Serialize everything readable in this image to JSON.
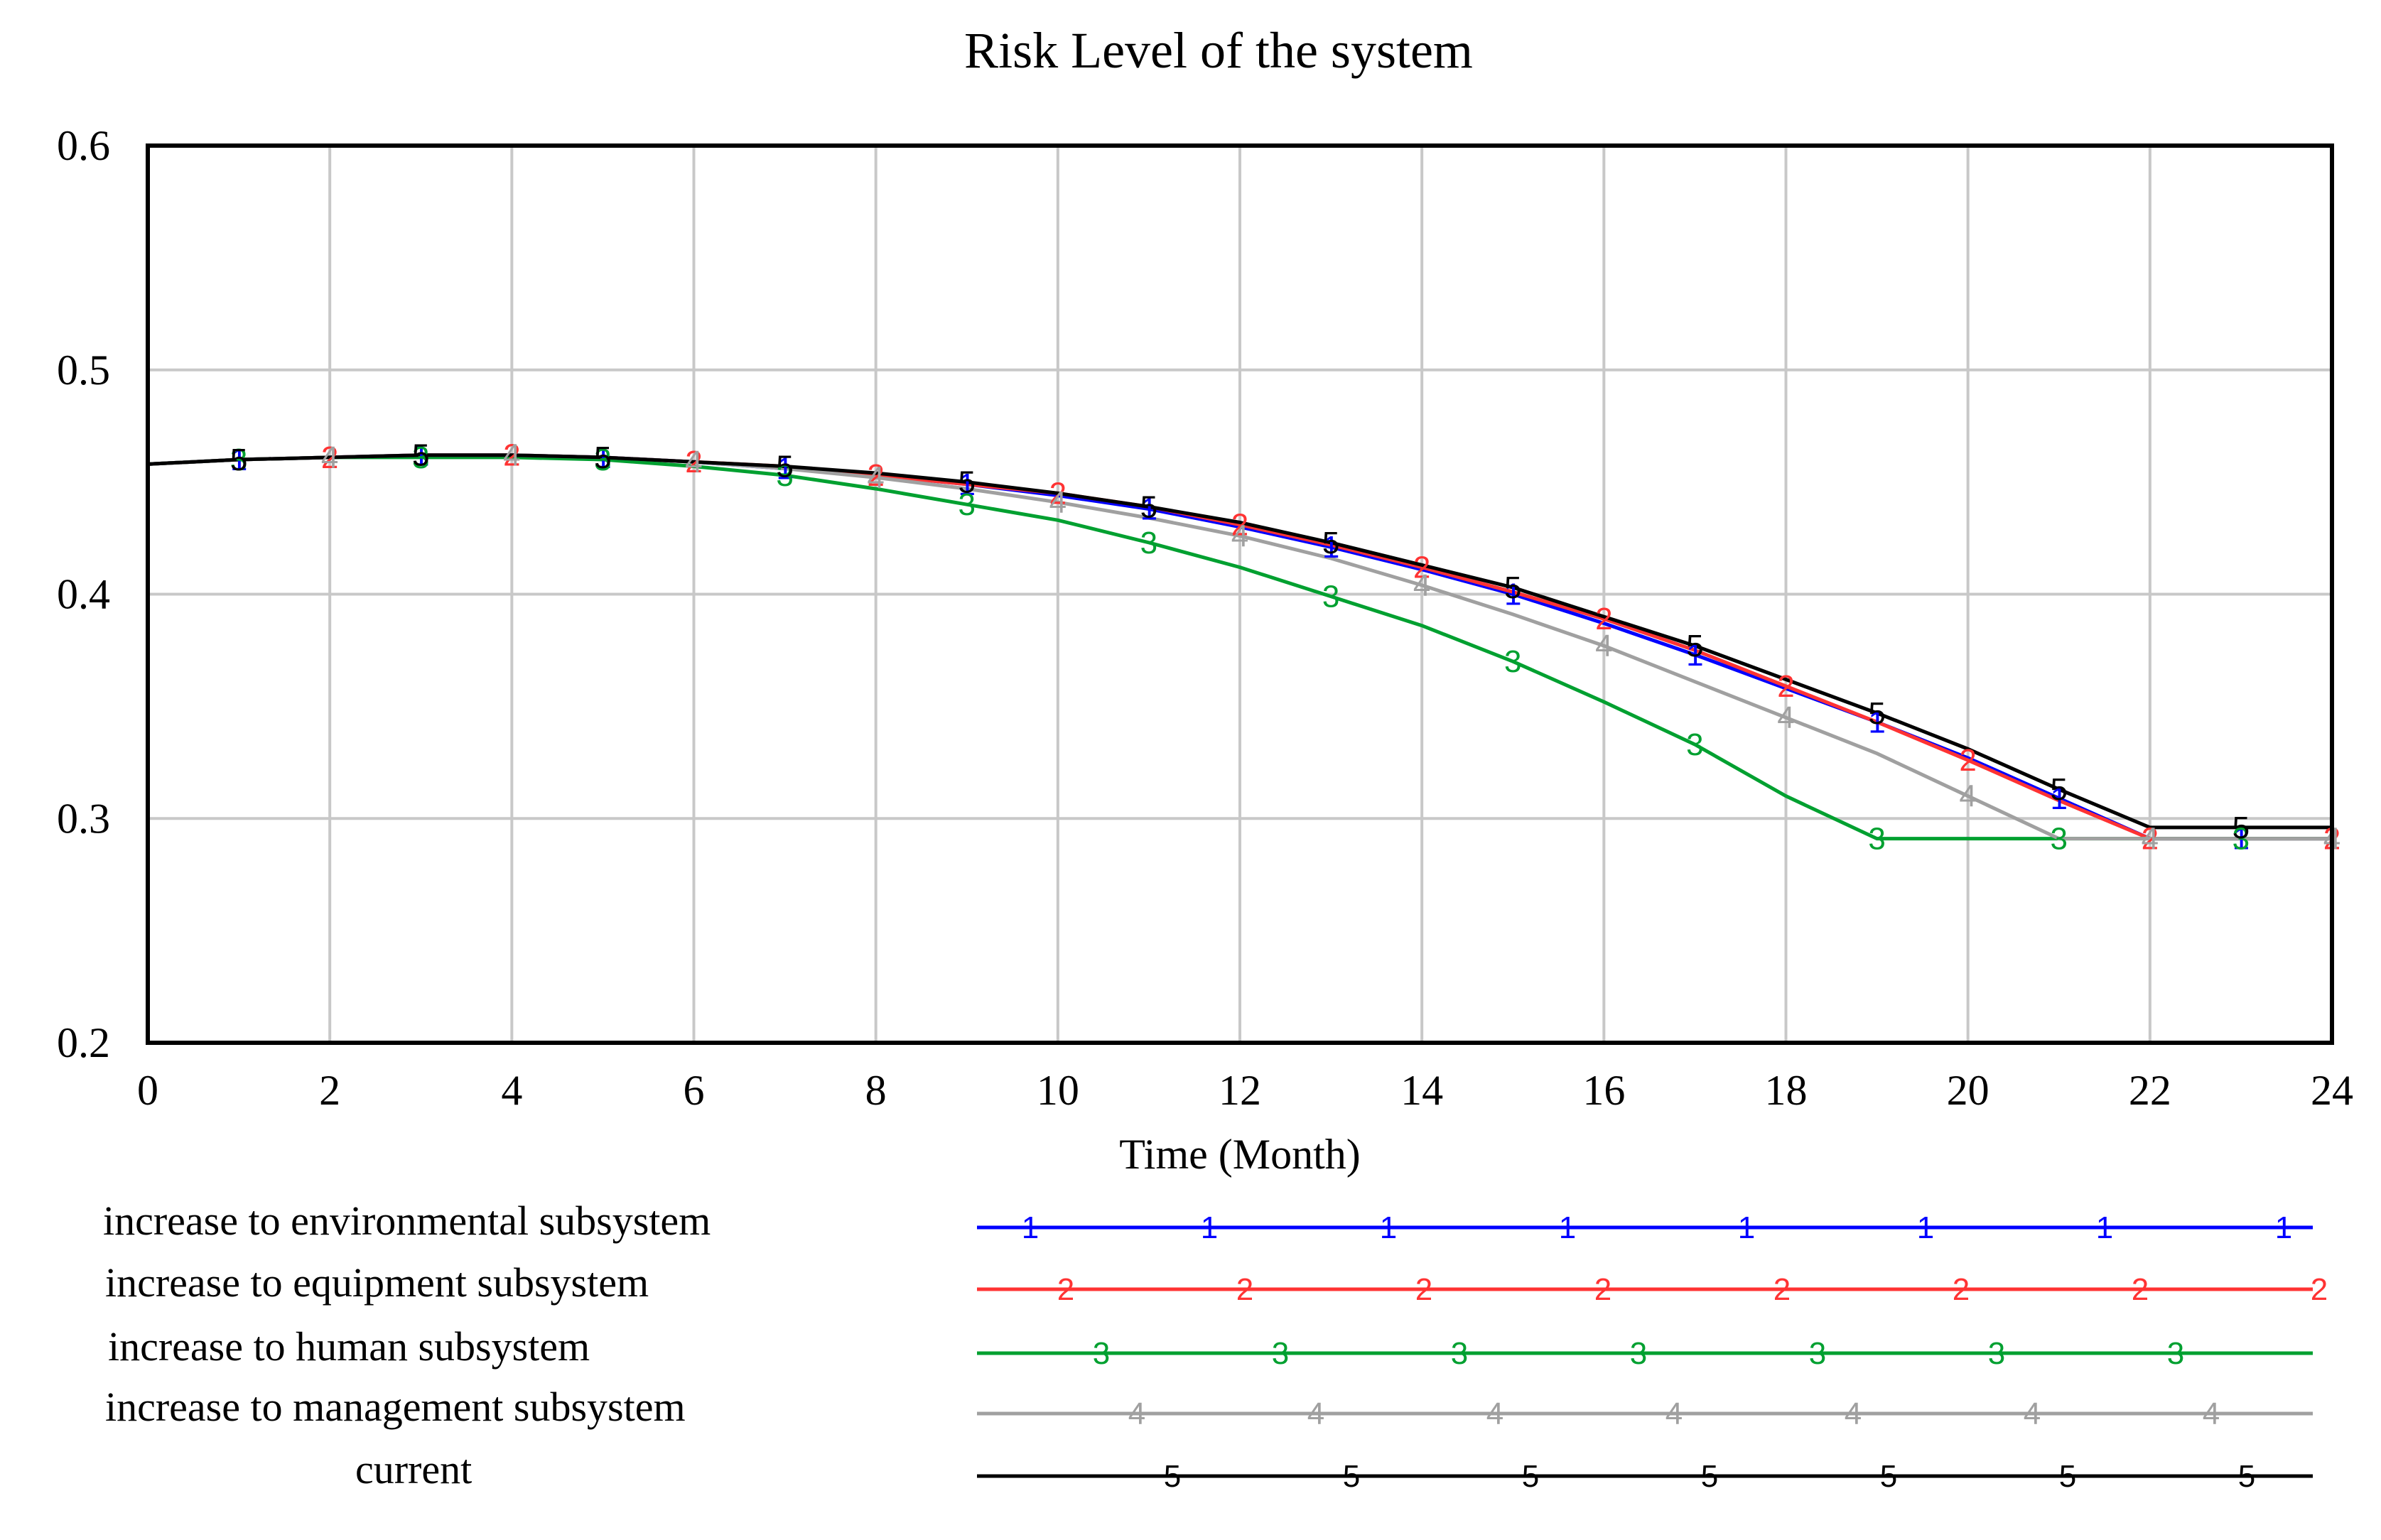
{
  "chart_data": {
    "type": "line",
    "title": "Risk Level of the system",
    "xlabel": "Time (Month)",
    "ylabel": "",
    "xlim": [
      0,
      24
    ],
    "ylim": [
      0.2,
      0.6
    ],
    "xticks": [
      "0",
      "2",
      "4",
      "6",
      "8",
      "10",
      "12",
      "14",
      "16",
      "18",
      "20",
      "22",
      "24"
    ],
    "yticks": [
      "0.2",
      "0.3",
      "0.4",
      "0.5",
      "0.6"
    ],
    "grid": true,
    "legend_position": "bottom",
    "x": [
      0,
      1,
      2,
      3,
      4,
      5,
      6,
      7,
      8,
      9,
      10,
      11,
      12,
      13,
      14,
      15,
      16,
      17,
      18,
      19,
      20,
      21,
      22,
      23,
      24
    ],
    "series": [
      {
        "name": "increase to environmental subsystem",
        "marker": "1",
        "color": "#0000ff",
        "values": [
          0.458,
          0.46,
          0.461,
          0.462,
          0.462,
          0.461,
          0.459,
          0.456,
          0.453,
          0.449,
          0.444,
          0.438,
          0.43,
          0.421,
          0.411,
          0.4,
          0.387,
          0.373,
          0.358,
          0.343,
          0.327,
          0.309,
          0.291,
          0.291,
          0.291
        ]
      },
      {
        "name": "increase to equipment subsystem",
        "marker": "2",
        "color": "#ff3333",
        "values": [
          0.458,
          0.46,
          0.461,
          0.462,
          0.462,
          0.461,
          0.459,
          0.457,
          0.453,
          0.449,
          0.445,
          0.439,
          0.431,
          0.422,
          0.412,
          0.401,
          0.389,
          0.375,
          0.359,
          0.343,
          0.326,
          0.308,
          0.291,
          0.291,
          0.291
        ]
      },
      {
        "name": "increase to human subsystem",
        "marker": "3",
        "color": "#00a030",
        "values": [
          0.458,
          0.46,
          0.461,
          0.461,
          0.461,
          0.46,
          0.457,
          0.453,
          0.447,
          0.44,
          0.433,
          0.423,
          0.412,
          0.399,
          0.386,
          0.37,
          0.352,
          0.333,
          0.31,
          0.291,
          0.291,
          0.291,
          0.291,
          0.291,
          0.291
        ]
      },
      {
        "name": "increase to management subsystem",
        "marker": "4",
        "color": "#a0a0a0",
        "values": [
          0.458,
          0.46,
          0.461,
          0.462,
          0.462,
          0.461,
          0.459,
          0.456,
          0.452,
          0.447,
          0.441,
          0.434,
          0.426,
          0.416,
          0.404,
          0.391,
          0.377,
          0.361,
          0.345,
          0.329,
          0.31,
          0.291,
          0.291,
          0.291,
          0.291
        ]
      },
      {
        "name": "current",
        "marker": "5",
        "color": "#000000",
        "values": [
          0.458,
          0.46,
          0.461,
          0.462,
          0.462,
          0.461,
          0.459,
          0.457,
          0.454,
          0.45,
          0.445,
          0.439,
          0.432,
          0.423,
          0.413,
          0.403,
          0.39,
          0.377,
          0.362,
          0.347,
          0.331,
          0.313,
          0.296,
          0.296,
          0.296
        ]
      }
    ]
  }
}
